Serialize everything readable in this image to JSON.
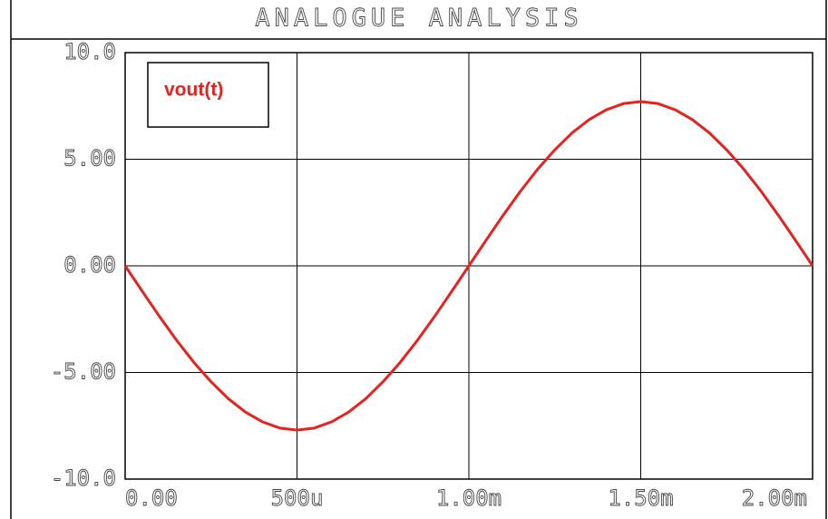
{
  "chart_data": {
    "type": "line",
    "title": "ANALOGUE ANALYSIS",
    "x": [
      0,
      5e-05,
      0.0001,
      0.00015,
      0.0002,
      0.00025,
      0.0003,
      0.00035,
      0.0004,
      0.00045,
      0.0005,
      0.00055,
      0.0006,
      0.00065,
      0.0007,
      0.00075,
      0.0008,
      0.00085,
      0.0009,
      0.00095,
      0.001,
      0.00105,
      0.0011,
      0.00115,
      0.0012,
      0.00125,
      0.0013,
      0.00135,
      0.0014,
      0.00145,
      0.0015,
      0.00155,
      0.0016,
      0.00165,
      0.0017,
      0.00175,
      0.0018,
      0.00185,
      0.0019,
      0.00195,
      0.002
    ],
    "series": [
      {
        "name": "vout(t)",
        "color": "#e8211e",
        "values": [
          0,
          -1.2,
          -2.38,
          -3.5,
          -4.53,
          -5.44,
          -6.23,
          -6.86,
          -7.32,
          -7.61,
          -7.7,
          -7.61,
          -7.32,
          -6.86,
          -6.23,
          -5.44,
          -4.53,
          -3.5,
          -2.38,
          -1.2,
          0,
          1.2,
          2.38,
          3.5,
          4.53,
          5.44,
          6.23,
          6.86,
          7.32,
          7.61,
          7.7,
          7.61,
          7.32,
          6.86,
          6.23,
          5.44,
          4.53,
          3.5,
          2.38,
          1.2,
          0
        ]
      }
    ],
    "xlim": [
      0,
      0.002
    ],
    "xticks": [
      {
        "value": 0,
        "label": "0.00"
      },
      {
        "value": 0.0005,
        "label": "500u"
      },
      {
        "value": 0.001,
        "label": "1.00m"
      },
      {
        "value": 0.0015,
        "label": "1.50m"
      },
      {
        "value": 0.002,
        "label": "2.00m"
      }
    ],
    "ylim": [
      -10,
      10
    ],
    "yticks": [
      {
        "value": 10,
        "label": "10.0"
      },
      {
        "value": 5,
        "label": "5.00"
      },
      {
        "value": 0,
        "label": "0.00"
      },
      {
        "value": -5,
        "label": "-5.00"
      },
      {
        "value": -10,
        "label": "-10.0"
      }
    ],
    "grid": true
  }
}
